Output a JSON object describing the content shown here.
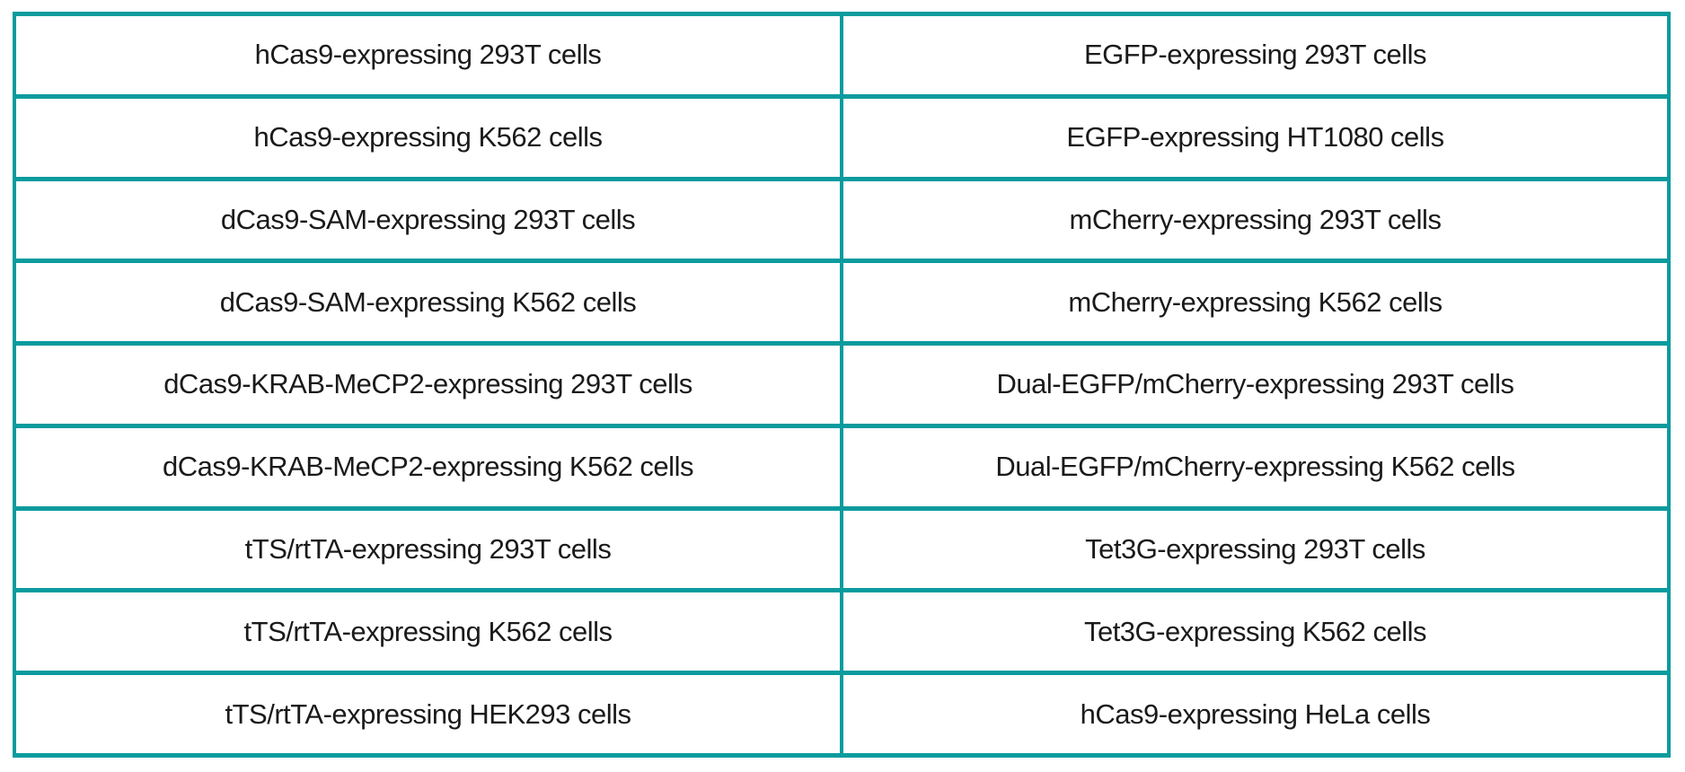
{
  "table": {
    "description": "Two-column table of engineered cell lines",
    "border_color": "#0a9b9e",
    "text_color": "#1a1a1a",
    "background_color": "#ffffff",
    "columns": 2,
    "rows": [
      {
        "left": "hCas9-expressing 293T cells",
        "right": "EGFP-expressing 293T cells"
      },
      {
        "left": "hCas9-expressing K562 cells",
        "right": "EGFP-expressing HT1080 cells"
      },
      {
        "left": "dCas9-SAM-expressing 293T cells",
        "right": "mCherry-expressing 293T cells"
      },
      {
        "left": "dCas9-SAM-expressing K562 cells",
        "right": "mCherry-expressing K562 cells"
      },
      {
        "left": "dCas9-KRAB-MeCP2-expressing 293T cells",
        "right": "Dual-EGFP/mCherry-expressing 293T cells"
      },
      {
        "left": "dCas9-KRAB-MeCP2-expressing K562 cells",
        "right": "Dual-EGFP/mCherry-expressing K562 cells"
      },
      {
        "left": "tTS/rtTA-expressing 293T cells",
        "right": "Tet3G-expressing 293T cells"
      },
      {
        "left": "tTS/rtTA-expressing K562 cells",
        "right": "Tet3G-expressing K562 cells"
      },
      {
        "left": "tTS/rtTA-expressing HEK293 cells",
        "right": "hCas9-expressing HeLa cells"
      }
    ]
  }
}
